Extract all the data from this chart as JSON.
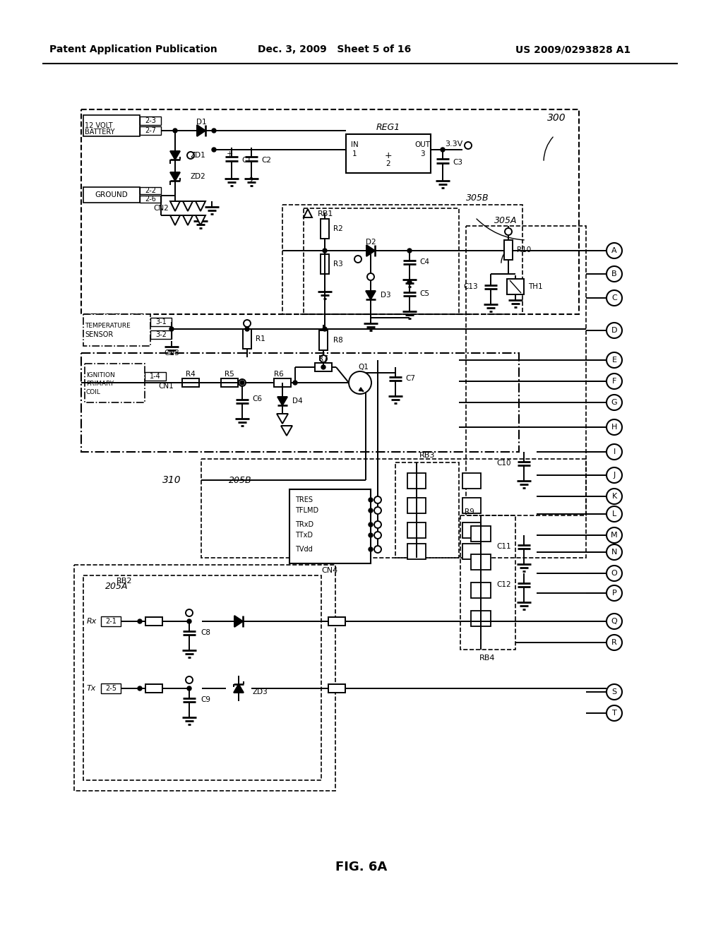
{
  "header_left": "Patent Application Publication",
  "header_mid": "Dec. 3, 2009   Sheet 5 of 16",
  "header_right": "US 2009/0293828 A1",
  "figure_label": "FIG. 6A",
  "bg": "#ffffff"
}
